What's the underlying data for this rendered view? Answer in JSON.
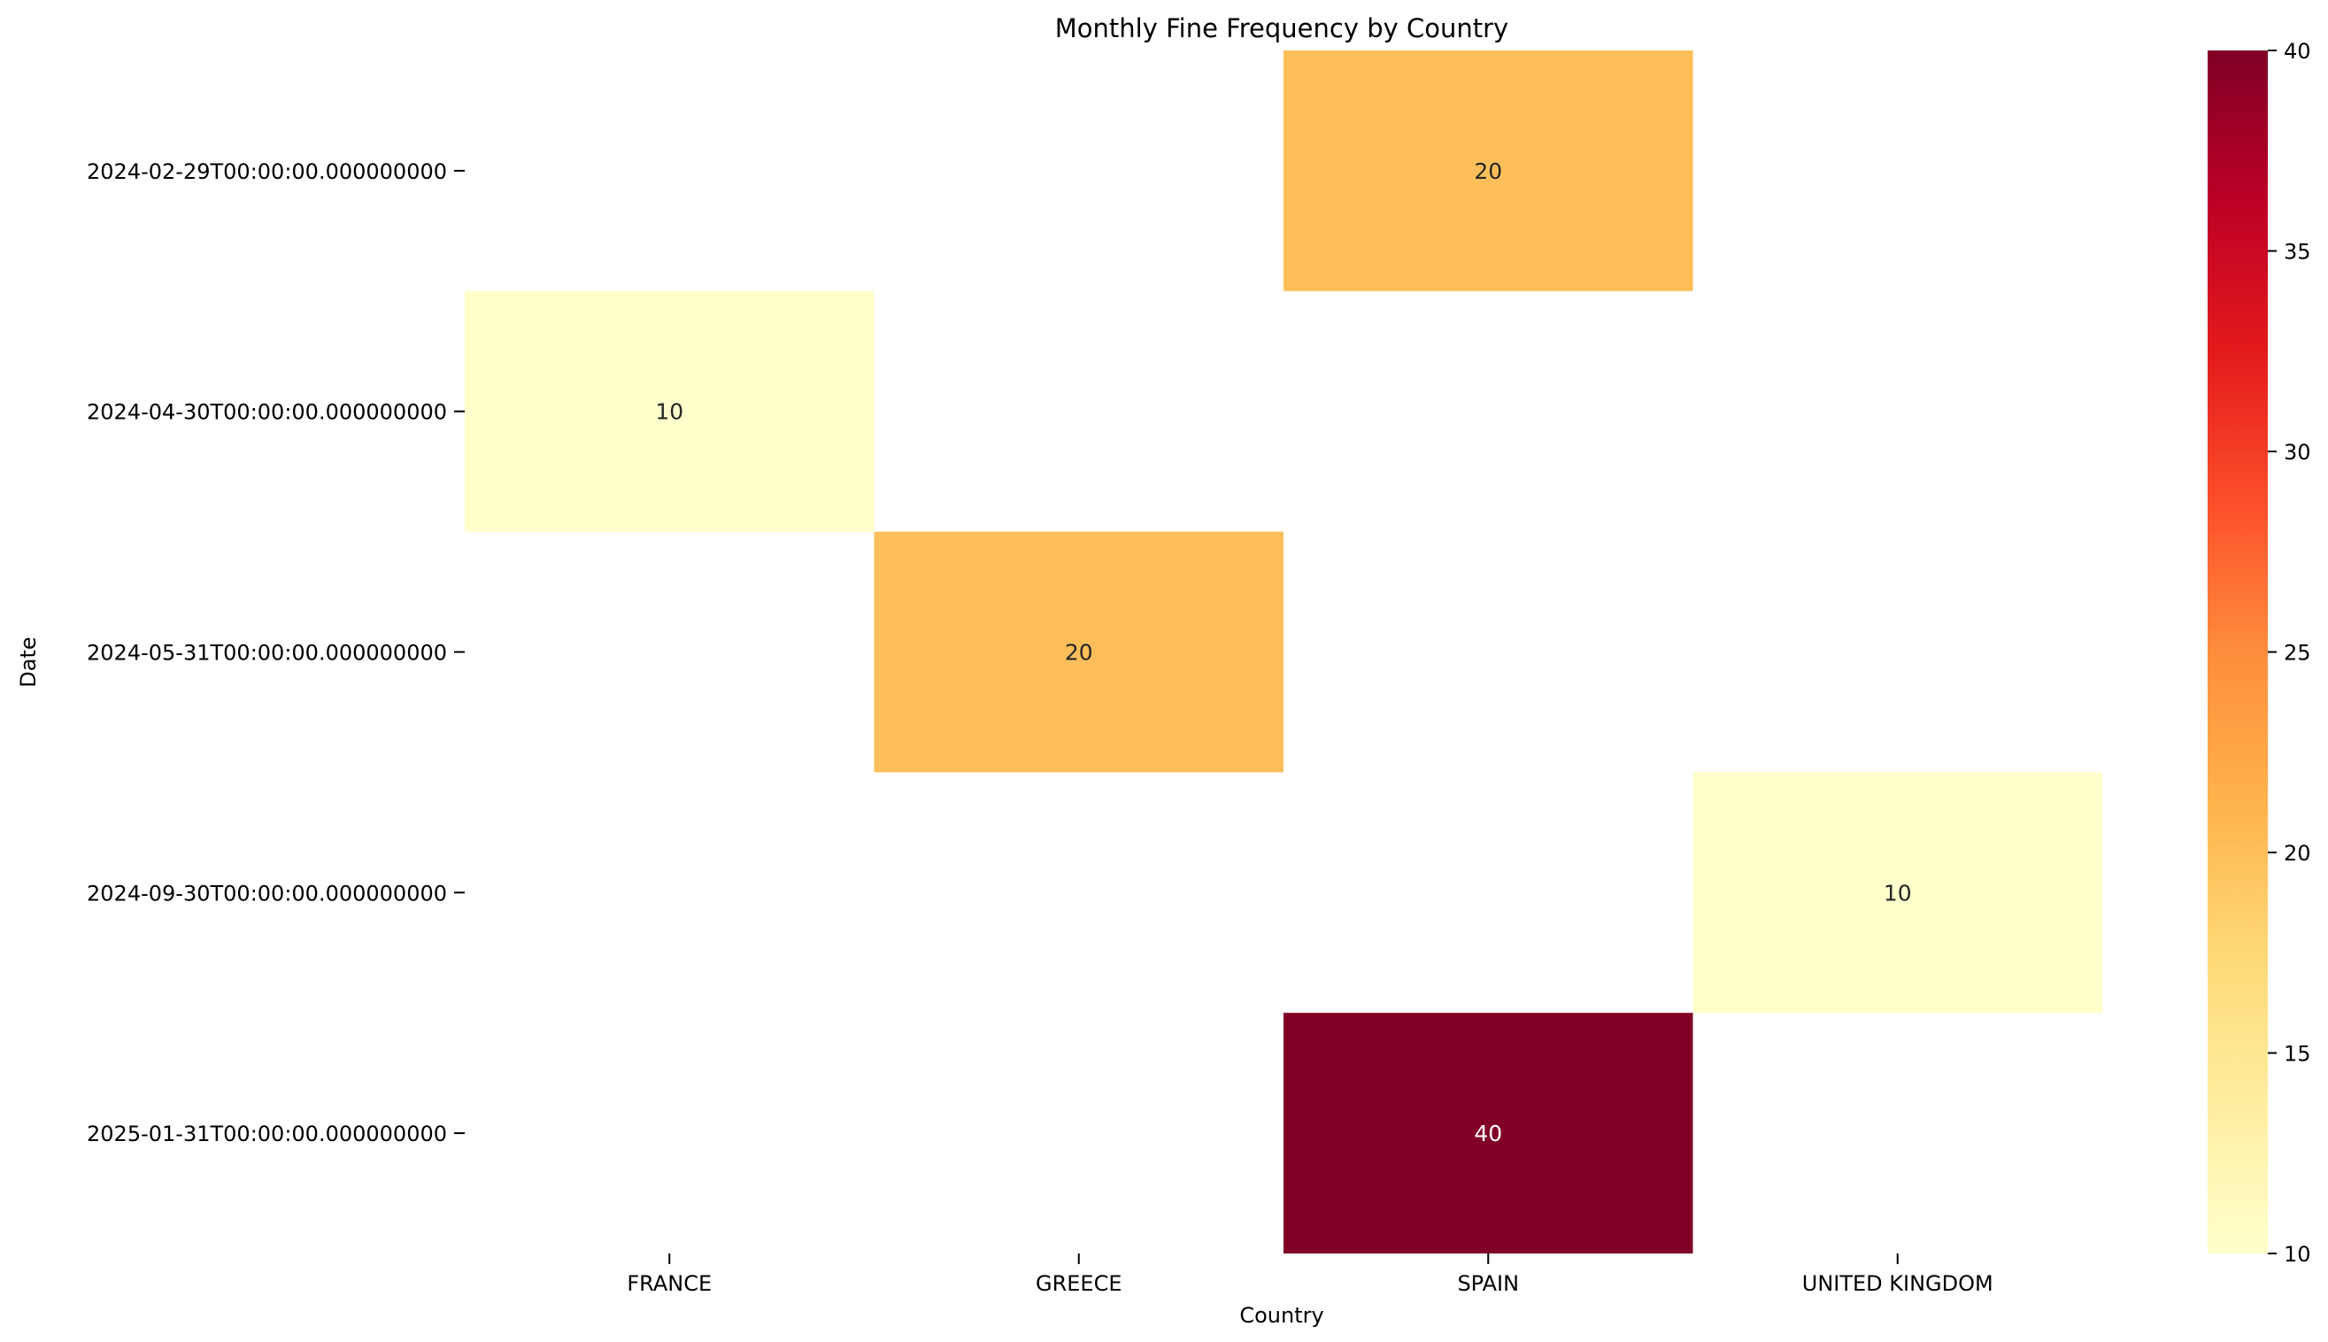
{
  "chart_data": {
    "type": "heatmap",
    "title": "Monthly Fine Frequency by Country",
    "xlabel": "Country",
    "ylabel": "Date",
    "x_categories": [
      "FRANCE",
      "GREECE",
      "SPAIN",
      "UNITED KINGDOM"
    ],
    "y_categories": [
      "2024-02-29T00:00:00.000000000",
      "2024-04-30T00:00:00.000000000",
      "2024-05-31T00:00:00.000000000",
      "2024-09-30T00:00:00.000000000",
      "2025-01-31T00:00:00.000000000"
    ],
    "values": [
      [
        null,
        null,
        20,
        null
      ],
      [
        10,
        null,
        null,
        null
      ],
      [
        null,
        20,
        null,
        null
      ],
      [
        null,
        null,
        null,
        10
      ],
      [
        null,
        null,
        40,
        null
      ]
    ],
    "colormap": "YlOrRd",
    "colorbar": {
      "min": 10,
      "max": 40,
      "ticks": [
        10,
        15,
        20,
        25,
        30,
        35,
        40
      ]
    },
    "annotations": true,
    "grid": false
  }
}
